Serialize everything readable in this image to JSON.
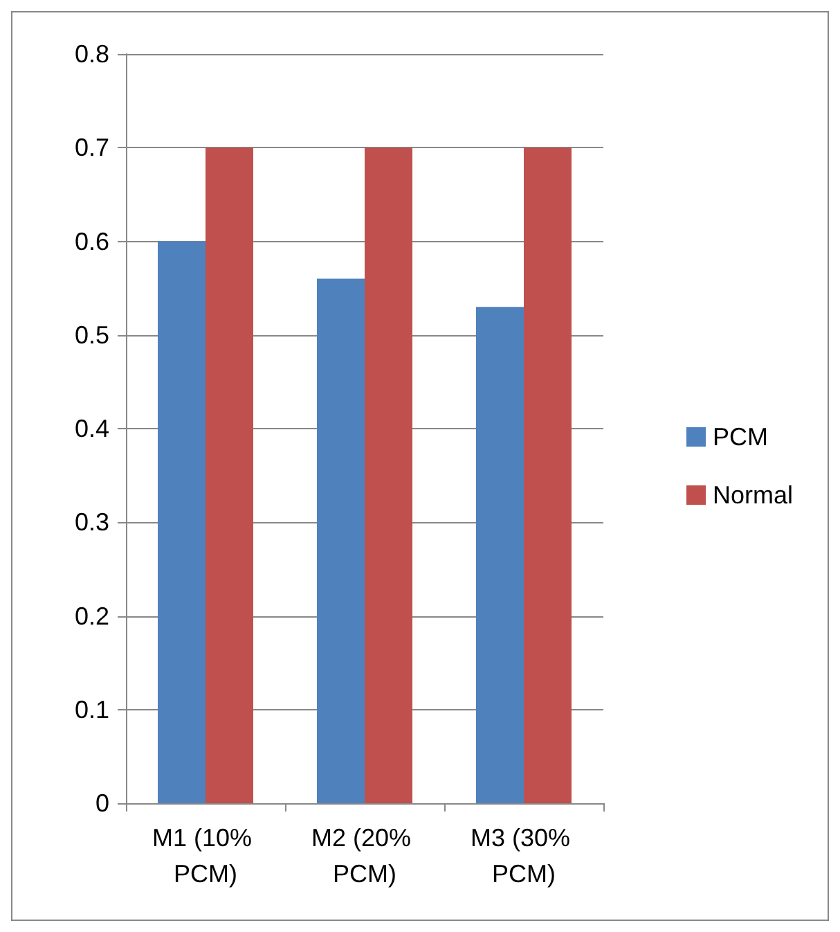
{
  "chart_data": {
    "type": "bar",
    "categories": [
      "M1 (10% PCM)",
      "M2 (20% PCM)",
      "M3 (30% PCM)"
    ],
    "series": [
      {
        "name": "PCM",
        "color": "#4f81bd",
        "values": [
          0.6,
          0.56,
          0.53
        ]
      },
      {
        "name": "Normal",
        "color": "#c0504d",
        "values": [
          0.7,
          0.7,
          0.7
        ]
      }
    ],
    "ylim": [
      0,
      0.8
    ],
    "yticks": [
      0,
      0.1,
      0.2,
      0.3,
      0.4,
      0.5,
      0.6,
      0.7,
      0.8
    ],
    "grid": "y",
    "legend": "right"
  }
}
